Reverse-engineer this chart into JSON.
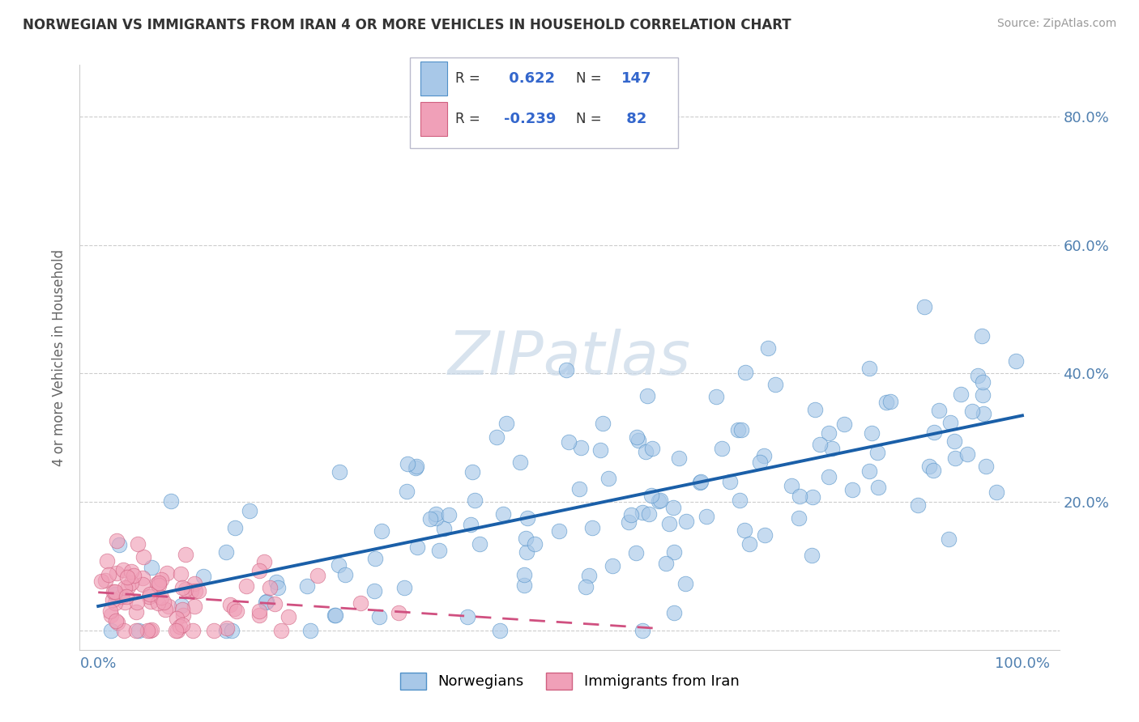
{
  "title": "NORWEGIAN VS IMMIGRANTS FROM IRAN 4 OR MORE VEHICLES IN HOUSEHOLD CORRELATION CHART",
  "source": "Source: ZipAtlas.com",
  "ylabel": "4 or more Vehicles in Household",
  "legend_label1": "Norwegians",
  "legend_label2": "Immigrants from Iran",
  "R1": 0.622,
  "N1": 147,
  "R2": -0.239,
  "N2": 82,
  "blue_scatter_color": "#a8c8e8",
  "blue_edge_color": "#5090c8",
  "pink_scatter_color": "#f0a0b8",
  "pink_edge_color": "#d06080",
  "blue_line_color": "#1a5fa8",
  "pink_line_color": "#d05080",
  "watermark": "ZIPatlas",
  "axis_label_color": "#5080b0",
  "text_color": "#333333",
  "grid_color": "#cccccc",
  "legend_text_color": "#3366cc"
}
